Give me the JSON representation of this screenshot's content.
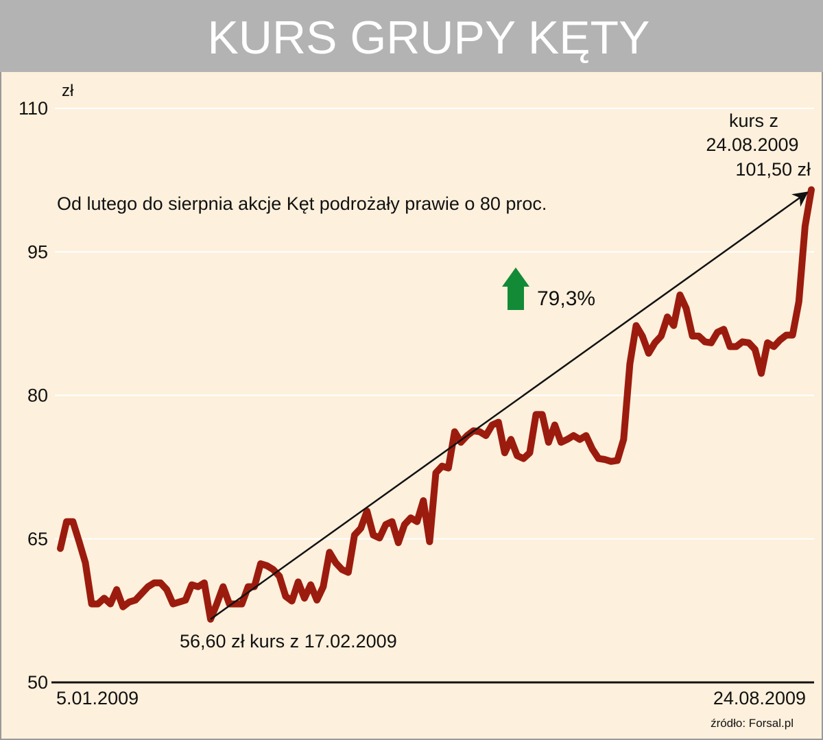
{
  "chart_data": {
    "type": "line",
    "title": "KURS GRUPY KĘTY",
    "subtitle": "Od lutego do sierpnia akcje Kęt podrożały prawie o 80 proc.",
    "y_label": "zł",
    "end_label": [
      "kurs z",
      "24.08.2009",
      "101,50 zł"
    ],
    "start_label": "56,60 zł kurs z 17.02.2009",
    "change_label": "79,3%",
    "source": "źródło: Forsal.pl",
    "ylim": [
      50,
      110
    ],
    "yticks": [
      50,
      65,
      80,
      95,
      110
    ],
    "grid": true,
    "color": "#9b1c0e",
    "categories": [
      "5.01.2009",
      null,
      null,
      null,
      null,
      null,
      null,
      null,
      null,
      null,
      null,
      null,
      null,
      null,
      null,
      null,
      null,
      null,
      null,
      null,
      null,
      null,
      null,
      null,
      null,
      null,
      null,
      null,
      null,
      null,
      null,
      null,
      null,
      null,
      null,
      null,
      null,
      null,
      null,
      null,
      null,
      null,
      null,
      null,
      null,
      null,
      null,
      null,
      null,
      null,
      null,
      null,
      null,
      null,
      null,
      null,
      null,
      null,
      null,
      null,
      null,
      null,
      null,
      null,
      null,
      null,
      null,
      null,
      null,
      null,
      null,
      null,
      null,
      null,
      null,
      null,
      null,
      null,
      null,
      null,
      null,
      null,
      null,
      null,
      null,
      null,
      null,
      null,
      null,
      null,
      null,
      null,
      null,
      null,
      null,
      null,
      null,
      null,
      null,
      null,
      null,
      null,
      null,
      null,
      null,
      null,
      null,
      null,
      null,
      null,
      null,
      null,
      null,
      null,
      null,
      null,
      null,
      null,
      null,
      null,
      "24.08.2009"
    ],
    "values": [
      64.0,
      66.8,
      66.8,
      64.7,
      62.5,
      58.2,
      58.2,
      58.8,
      58.2,
      59.7,
      57.9,
      58.4,
      58.6,
      59.3,
      60.0,
      60.4,
      60.4,
      59.7,
      58.2,
      58.4,
      58.6,
      60.2,
      60.0,
      60.4,
      56.6,
      58.2,
      60.0,
      58.2,
      58.2,
      58.2,
      60.0,
      60.0,
      62.4,
      62.2,
      61.8,
      61.1,
      59.0,
      58.5,
      60.5,
      58.8,
      60.2,
      58.6,
      60.0,
      63.6,
      62.5,
      61.8,
      61.5,
      65.4,
      66.1,
      67.9,
      65.4,
      65.1,
      66.5,
      66.8,
      64.6,
      66.5,
      67.2,
      66.8,
      69.0,
      64.7,
      71.9,
      72.6,
      72.4,
      76.2,
      75.1,
      75.8,
      76.3,
      76.2,
      75.8,
      76.9,
      77.2,
      74.0,
      75.4,
      73.7,
      73.4,
      74.0,
      78.0,
      78.0,
      75.1,
      76.9,
      75.1,
      75.4,
      75.8,
      75.4,
      75.8,
      74.4,
      73.4,
      73.3,
      73.1,
      73.2,
      75.4,
      83.3,
      87.3,
      86.2,
      84.4,
      85.5,
      86.2,
      88.2,
      87.3,
      90.5,
      89.1,
      86.2,
      86.2,
      85.6,
      85.5,
      86.6,
      86.9,
      85.1,
      85.1,
      85.6,
      85.5,
      84.8,
      82.3,
      85.5,
      85.1,
      85.8,
      86.3,
      86.3,
      89.8,
      97.7,
      101.5
    ]
  }
}
